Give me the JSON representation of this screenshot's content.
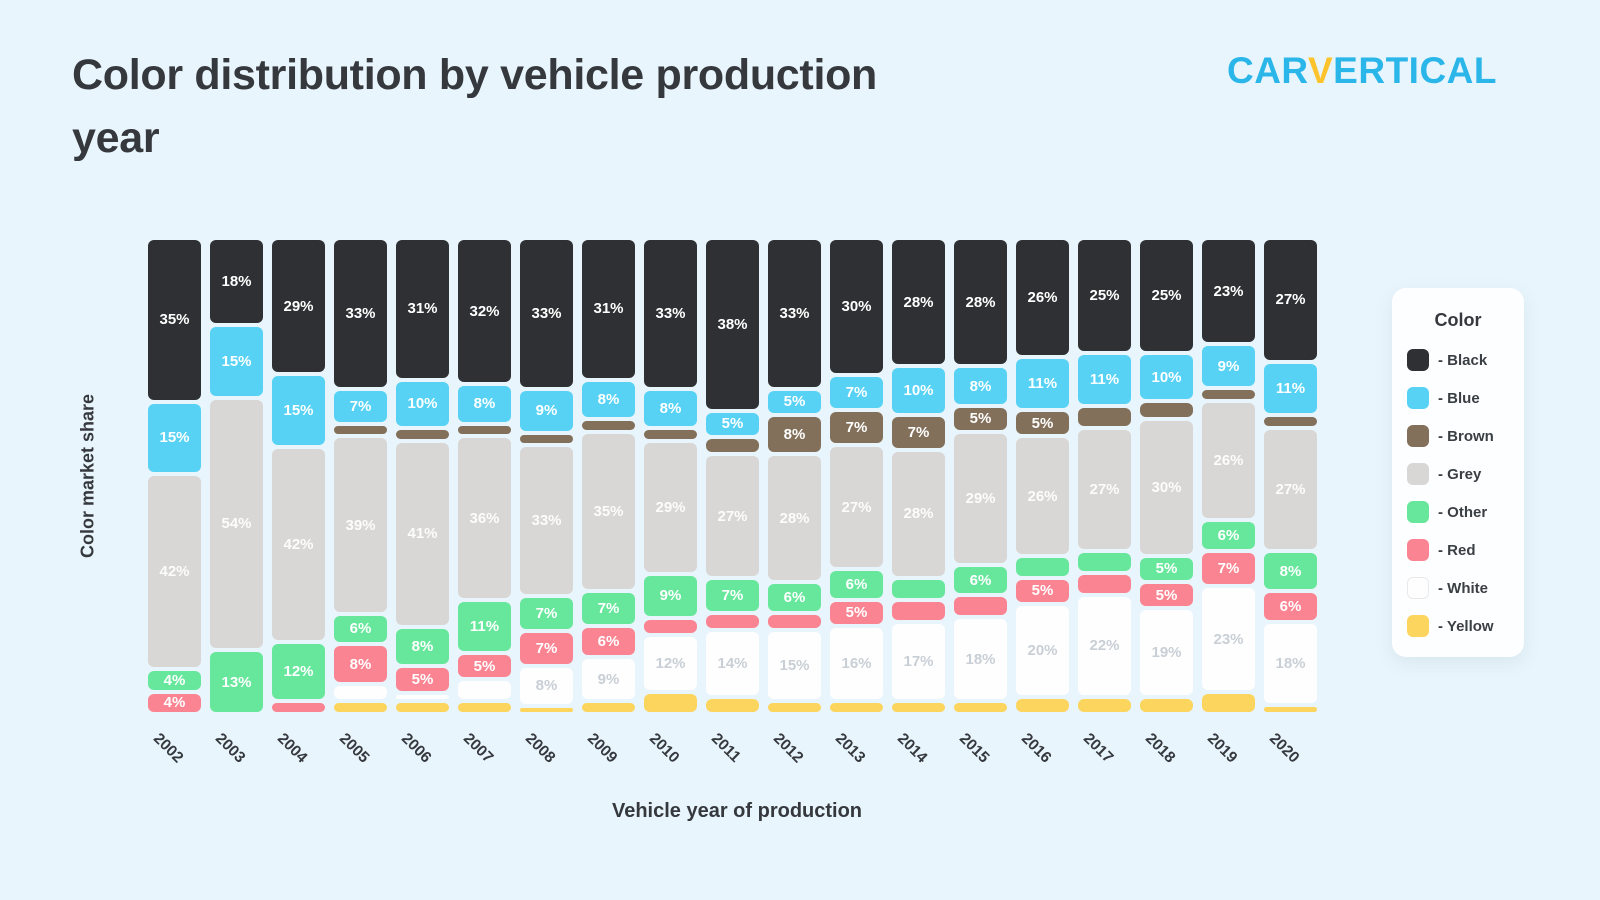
{
  "header": {
    "title": "Color distribution by vehicle production year",
    "logo": {
      "car": "CAR",
      "v": "V",
      "ertical": "ERTICAL"
    }
  },
  "chart_data": {
    "type": "bar",
    "stacked": true,
    "title": "Color distribution by vehicle production year",
    "xlabel": "Vehicle year of production",
    "ylabel": "Color market share",
    "legend_position": "right",
    "grid": false,
    "ylim_percent": [
      0,
      100
    ],
    "categories": [
      "2002",
      "2003",
      "2004",
      "2005",
      "2006",
      "2007",
      "2008",
      "2009",
      "2010",
      "2011",
      "2012",
      "2013",
      "2014",
      "2015",
      "2016",
      "2017",
      "2018",
      "2019",
      "2020"
    ],
    "colors": {
      "Black": "#2f3033",
      "Blue": "#57d2f5",
      "Brown": "#83705a",
      "Grey": "#d8d7d5",
      "Other": "#67e79c",
      "Red": "#fa8491",
      "White": "#fefefe",
      "Yellow": "#fbd55e"
    },
    "series": [
      {
        "name": "Black",
        "values": [
          35,
          18,
          29,
          33,
          31,
          32,
          33,
          31,
          33,
          38,
          33,
          30,
          28,
          28,
          26,
          25,
          25,
          23,
          27
        ],
        "labels": [
          "35%",
          "18%",
          "29%",
          "33%",
          "31%",
          "32%",
          "33%",
          "31%",
          "33%",
          "38%",
          "33%",
          "30%",
          "28%",
          "28%",
          "26%",
          "25%",
          "25%",
          "23%",
          "27%"
        ]
      },
      {
        "name": "Blue",
        "values": [
          15,
          15,
          15,
          7,
          10,
          8,
          9,
          8,
          8,
          5,
          5,
          7,
          10,
          8,
          11,
          11,
          10,
          9,
          11
        ],
        "labels": [
          "15%",
          "15%",
          "15%",
          "7%",
          "10%",
          "8%",
          "9%",
          "8%",
          "8%",
          "5%",
          "5%",
          "7%",
          "10%",
          "8%",
          "11%",
          "11%",
          "10%",
          "9%",
          "11%"
        ]
      },
      {
        "name": "Brown",
        "values": [
          0,
          0,
          0,
          2,
          2,
          2,
          2,
          2,
          2,
          3,
          8,
          7,
          7,
          5,
          5,
          4,
          3,
          2,
          2
        ],
        "labels": [
          "",
          "",
          "",
          "",
          "",
          "",
          "",
          "",
          "",
          "",
          "8%",
          "7%",
          "7%",
          "5%",
          "5%",
          "",
          "",
          "",
          ""
        ]
      },
      {
        "name": "Grey",
        "values": [
          42,
          54,
          42,
          39,
          41,
          36,
          33,
          35,
          29,
          27,
          28,
          27,
          28,
          29,
          26,
          27,
          30,
          26,
          27
        ],
        "labels": [
          "42%",
          "54%",
          "42%",
          "39%",
          "41%",
          "36%",
          "33%",
          "35%",
          "29%",
          "27%",
          "28%",
          "27%",
          "28%",
          "29%",
          "26%",
          "27%",
          "30%",
          "26%",
          "27%"
        ]
      },
      {
        "name": "Other",
        "values": [
          4,
          13,
          12,
          6,
          8,
          11,
          7,
          7,
          9,
          7,
          6,
          6,
          4,
          6,
          4,
          4,
          5,
          6,
          8
        ],
        "labels": [
          "4%",
          "13%",
          "12%",
          "6%",
          "8%",
          "11%",
          "7%",
          "7%",
          "9%",
          "7%",
          "6%",
          "6%",
          "",
          "6%",
          "",
          "",
          "5%",
          "6%",
          "8%"
        ]
      },
      {
        "name": "Red",
        "values": [
          4,
          0,
          2,
          8,
          5,
          5,
          7,
          6,
          3,
          3,
          3,
          5,
          4,
          4,
          5,
          4,
          5,
          7,
          6
        ],
        "labels": [
          "4%",
          "",
          "",
          "8%",
          "5%",
          "5%",
          "7%",
          "6%",
          "",
          "",
          "",
          "5%",
          "",
          "",
          "5%",
          "",
          "5%",
          "7%",
          "6%"
        ]
      },
      {
        "name": "White",
        "values": [
          0,
          0,
          0,
          3,
          1,
          4,
          8,
          9,
          12,
          14,
          15,
          16,
          17,
          18,
          20,
          22,
          19,
          23,
          18
        ],
        "labels": [
          "",
          "",
          "",
          "",
          "",
          "",
          "8%",
          "9%",
          "12%",
          "14%",
          "15%",
          "16%",
          "17%",
          "18%",
          "20%",
          "22%",
          "19%",
          "23%",
          "18%"
        ]
      },
      {
        "name": "Yellow",
        "values": [
          0,
          0,
          0,
          2,
          2,
          2,
          1,
          2,
          4,
          3,
          2,
          2,
          2,
          2,
          3,
          3,
          3,
          4,
          1
        ],
        "labels": [
          "",
          "",
          "",
          "",
          "",
          "",
          "",
          "",
          "",
          "",
          "",
          "",
          "",
          "",
          "",
          "",
          "",
          "",
          ""
        ]
      }
    ]
  },
  "legend": {
    "title": "Color",
    "items": [
      {
        "color": "#2f3033",
        "label": "- Black"
      },
      {
        "color": "#57d2f5",
        "label": "- Blue"
      },
      {
        "color": "#83705a",
        "label": "- Brown"
      },
      {
        "color": "#d8d7d5",
        "label": "- Grey"
      },
      {
        "color": "#67e79c",
        "label": "- Other"
      },
      {
        "color": "#fa8491",
        "label": "- Red"
      },
      {
        "color": "#fefefe",
        "label": "- White"
      },
      {
        "color": "#fbd55e",
        "label": "- Yellow"
      }
    ]
  }
}
